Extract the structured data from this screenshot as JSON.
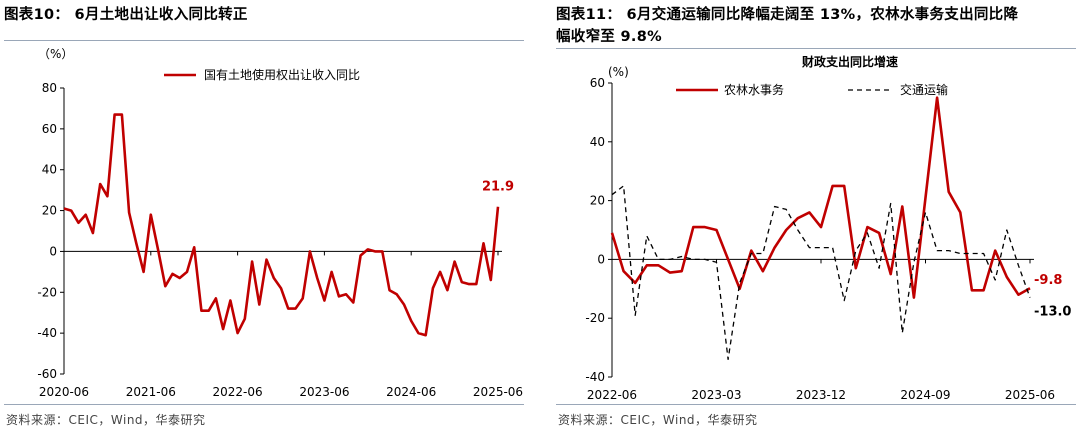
{
  "left": {
    "title": "图表10： 6月土地出让收入同比转正",
    "source": "资料来源：CEIC，Wind，华泰研究",
    "chart_data": {
      "type": "line",
      "unit": "（%）",
      "ylim": [
        -60,
        80
      ],
      "yticks": [
        80,
        60,
        40,
        20,
        0,
        -20,
        -40,
        -60
      ],
      "xtick_labels": [
        "2020-06",
        "2021-06",
        "2022-06",
        "2023-06",
        "2024-06",
        "2025-06"
      ],
      "xtick_index": [
        0,
        12,
        24,
        36,
        48,
        60
      ],
      "grid": false,
      "legend_position": "top-center",
      "series": [
        {
          "name": "国有土地使用权出让收入同比",
          "color": "#c00000",
          "values": [
            21,
            20,
            14,
            18,
            9,
            33,
            27,
            67,
            67,
            19,
            4,
            -10,
            18,
            1,
            -17,
            -11,
            -13,
            -10,
            2,
            -29,
            -29,
            -23,
            -38,
            -24,
            -40,
            -33,
            -5,
            -26,
            -4,
            -13,
            -18,
            -28,
            -28,
            -23,
            0,
            -13,
            -24,
            -10,
            -22,
            -21,
            -25,
            -2,
            1,
            0,
            0,
            -19,
            -21,
            -26,
            -34,
            -40,
            -41,
            -18,
            -10,
            -19,
            -5,
            -15,
            -16,
            -16,
            4,
            -14,
            21.9
          ],
          "end_label": "21.9"
        }
      ]
    }
  },
  "right": {
    "title_line1": "图表11： 6月交通运输同比降幅走阔至 13%，农林水事务支出同比降",
    "title_line2": "幅收窄至 9.8%",
    "source": "资料来源：CEIC，Wind，华泰研究",
    "chart_data": {
      "type": "line",
      "title": "财政支出同比增速",
      "unit": "(%)",
      "ylim": [
        -40,
        60
      ],
      "yticks": [
        60,
        40,
        20,
        0,
        -20,
        -40
      ],
      "xtick_labels": [
        "2022-06",
        "2023-03",
        "2023-12",
        "2024-09",
        "2025-06"
      ],
      "xtick_index": [
        0,
        9,
        18,
        27,
        36
      ],
      "grid": false,
      "legend_position": "top",
      "series": [
        {
          "name": "农林水事务",
          "color": "#c00000",
          "style": "solid",
          "values": [
            9,
            -4,
            -8,
            -2,
            -2,
            -4.5,
            -4,
            11,
            11,
            10,
            0,
            -10,
            3,
            -4,
            4,
            10,
            14,
            16,
            11,
            25,
            25,
            -3,
            11,
            9,
            -5,
            18,
            -13,
            21,
            55,
            23,
            16,
            -10.5,
            -10.5,
            3,
            -6,
            -12,
            -9.8
          ],
          "end_label": "-9.8"
        },
        {
          "name": "交通运输",
          "color": "#000000",
          "style": "dashed",
          "values": [
            22,
            25,
            -19,
            8,
            0,
            0,
            1,
            0,
            0,
            -1,
            -34,
            -8,
            2,
            2,
            18,
            17,
            10,
            4,
            4,
            4,
            -14,
            3,
            9,
            -3,
            19,
            -25,
            -1,
            16,
            3,
            3,
            2,
            2,
            2,
            -7,
            10,
            -2,
            -13.0
          ],
          "end_label": "-13.0"
        }
      ]
    }
  }
}
